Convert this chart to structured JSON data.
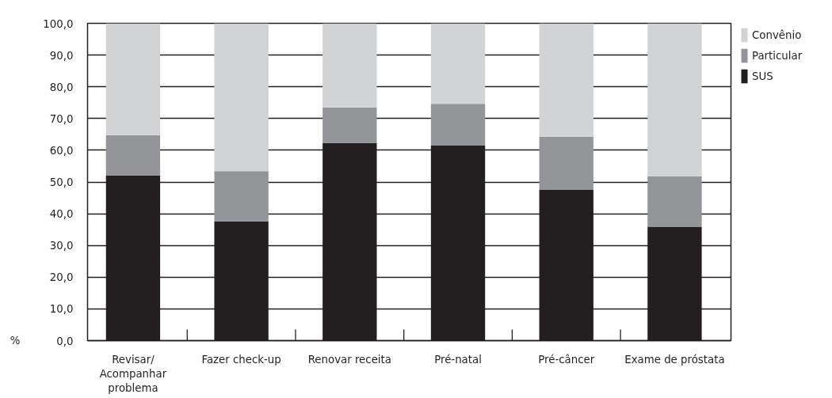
{
  "chart_data": {
    "type": "bar",
    "stacked": true,
    "ylabel": "%",
    "categories": [
      "Revisar/\nAcompanhar\nproblema",
      "Fazer check-up",
      "Renovar receita",
      "Pré-natal",
      "Pré-câncer",
      "Exame de próstata"
    ],
    "series": [
      {
        "name": "SUS",
        "color": "#231f20",
        "values": [
          52.0,
          37.6,
          62.3,
          61.5,
          47.5,
          35.9
        ]
      },
      {
        "name": "Particular",
        "color": "#939598",
        "values": [
          12.8,
          15.8,
          11.2,
          13.1,
          16.8,
          15.9
        ]
      },
      {
        "name": "Convênio",
        "color": "#d1d3d4",
        "values": [
          35.2,
          46.6,
          26.5,
          25.4,
          35.7,
          48.2
        ]
      }
    ],
    "ylim": [
      0,
      100
    ],
    "yticks": [
      {
        "value": 0,
        "label": "0,0"
      },
      {
        "value": 10,
        "label": "10,0"
      },
      {
        "value": 20,
        "label": "20,0"
      },
      {
        "value": 30,
        "label": "30,0"
      },
      {
        "value": 40,
        "label": "40,0"
      },
      {
        "value": 50,
        "label": "50,0"
      },
      {
        "value": 60,
        "label": "60,0"
      },
      {
        "value": 70,
        "label": "70,0"
      },
      {
        "value": 80,
        "label": "80,0"
      },
      {
        "value": 90,
        "label": "90,0"
      },
      {
        "value": 100,
        "label": "100,0"
      }
    ],
    "grid": "y",
    "legend": "top right"
  }
}
